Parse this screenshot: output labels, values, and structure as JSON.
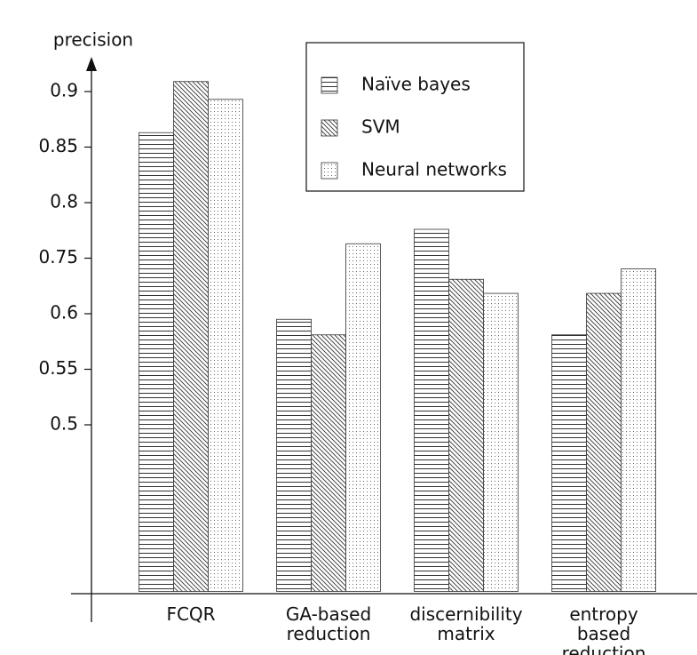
{
  "chart_data": {
    "type": "bar",
    "y_axis_label": "precision",
    "categories": [
      "FCQR",
      "GA-based reduction",
      "discernibility matrix",
      "entropy based reduction"
    ],
    "series": [
      {
        "name": "Naïve bayes",
        "color": "#333333",
        "pattern": "horizontal",
        "values": [
          0.863,
          0.595,
          0.776,
          0.581
        ]
      },
      {
        "name": "SVM",
        "color": "#333333",
        "pattern": "diagonal",
        "values": [
          0.909,
          0.581,
          0.693,
          0.655
        ]
      },
      {
        "name": "Neural networks",
        "color": "#333333",
        "pattern": "dots",
        "values": [
          0.893,
          0.763,
          0.655,
          0.721
        ]
      }
    ],
    "ylim": [
      0.35,
      0.93
    ],
    "yticks": [
      0.5,
      0.55,
      0.6,
      0.75,
      0.8,
      0.85,
      0.9
    ],
    "grid": false,
    "legend": "top-right"
  }
}
